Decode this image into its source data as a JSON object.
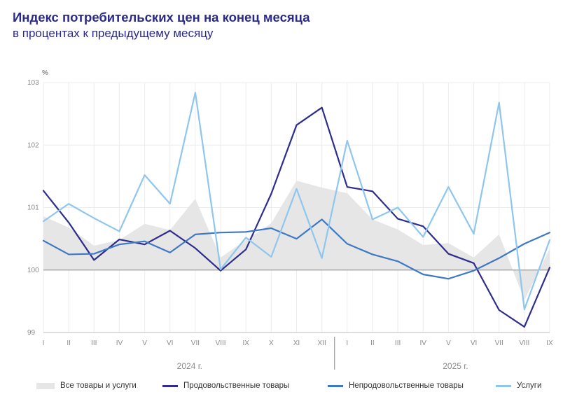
{
  "chart_data": {
    "type": "line",
    "title": "Индекс потребительских цен на конец месяца",
    "subtitle": "в процентах к предыдущему месяцу",
    "ylabel": "%",
    "ylim": [
      99,
      103
    ],
    "yticks": [
      "99",
      "100",
      "101",
      "102",
      "103"
    ],
    "categories": [
      "I",
      "II",
      "III",
      "IV",
      "V",
      "VI",
      "VII",
      "VIII",
      "IX",
      "X",
      "XI",
      "XII",
      "I",
      "II",
      "III",
      "IV",
      "V",
      "VI",
      "VII",
      "VIII",
      "IX"
    ],
    "year_labels": [
      "2024 г.",
      "2025 г."
    ],
    "grid": true,
    "legend_position": "bottom",
    "series": [
      {
        "name": "Все товары и услуги",
        "style": "area",
        "color": "#e6e6e6",
        "values": [
          100.86,
          100.68,
          100.39,
          100.48,
          100.74,
          100.64,
          101.14,
          100.2,
          100.48,
          100.75,
          101.43,
          101.32,
          101.23,
          100.81,
          100.65,
          100.4,
          100.43,
          100.2,
          100.57,
          99.52,
          100.34
        ]
      },
      {
        "name": "Продовольственные товары",
        "style": "line",
        "color": "#2e2c8c",
        "values": [
          101.27,
          100.76,
          100.16,
          100.49,
          100.41,
          100.63,
          100.35,
          99.99,
          100.33,
          101.22,
          102.32,
          102.6,
          101.33,
          101.26,
          100.82,
          100.7,
          100.26,
          100.11,
          99.36,
          99.09,
          100.04
        ]
      },
      {
        "name": "Непродовольственные товары",
        "style": "line",
        "color": "#3d78c6",
        "values": [
          100.47,
          100.25,
          100.26,
          100.41,
          100.46,
          100.28,
          100.57,
          100.6,
          100.61,
          100.67,
          100.5,
          100.81,
          100.42,
          100.25,
          100.14,
          99.93,
          99.86,
          99.99,
          100.19,
          100.42,
          100.6
        ]
      },
      {
        "name": "Услуги",
        "style": "line",
        "color": "#8fc6ee",
        "values": [
          100.78,
          101.06,
          100.83,
          100.62,
          101.52,
          101.06,
          102.84,
          100.01,
          100.52,
          100.21,
          101.3,
          100.19,
          102.07,
          100.81,
          101.0,
          100.53,
          101.33,
          100.58,
          102.68,
          99.37,
          100.48
        ]
      }
    ]
  }
}
